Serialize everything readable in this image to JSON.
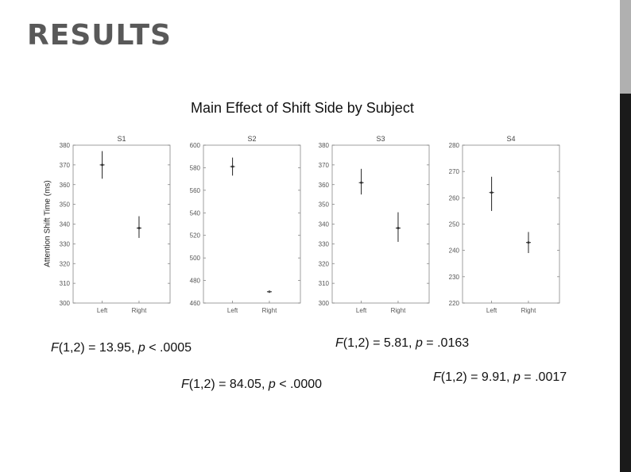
{
  "slide": {
    "title": "RESULTS"
  },
  "figure": {
    "title": "Main Effect of Shift Side by Subject",
    "ylabel": "Attention Shift Time (ms)"
  },
  "chart_data": [
    {
      "type": "scatter",
      "title": "S1",
      "categories": [
        "Left",
        "Right"
      ],
      "ylim": [
        300,
        380
      ],
      "yticks": [
        300,
        310,
        320,
        330,
        340,
        350,
        360,
        370,
        380
      ],
      "points": [
        {
          "x": "Left",
          "mean": 370,
          "low": 363,
          "high": 377
        },
        {
          "x": "Right",
          "mean": 338,
          "low": 333,
          "high": 344
        }
      ],
      "stat": {
        "test": "F(1,2)",
        "F": "13.95",
        "p": "< .0005"
      }
    },
    {
      "type": "scatter",
      "title": "S2",
      "categories": [
        "Left",
        "Right"
      ],
      "ylim": [
        460,
        600
      ],
      "yticks": [
        460,
        480,
        500,
        520,
        540,
        560,
        580,
        600
      ],
      "points": [
        {
          "x": "Left",
          "mean": 581,
          "low": 573,
          "high": 589
        },
        {
          "x": "Right",
          "mean": 470,
          "low": 470,
          "high": 470
        }
      ],
      "stat": {
        "test": "F(1,2)",
        "F": "84.05",
        "p": "< .0000"
      }
    },
    {
      "type": "scatter",
      "title": "S3",
      "categories": [
        "Left",
        "Right"
      ],
      "ylim": [
        300,
        380
      ],
      "yticks": [
        300,
        310,
        320,
        330,
        340,
        350,
        360,
        370,
        380
      ],
      "points": [
        {
          "x": "Left",
          "mean": 361,
          "low": 355,
          "high": 368
        },
        {
          "x": "Right",
          "mean": 338,
          "low": 331,
          "high": 346
        }
      ],
      "stat": {
        "test": "F(1,2)",
        "F": "5.81",
        "p": "= .0163"
      }
    },
    {
      "type": "scatter",
      "title": "S4",
      "categories": [
        "Left",
        "Right"
      ],
      "ylim": [
        220,
        280
      ],
      "yticks": [
        220,
        230,
        240,
        250,
        260,
        270,
        280
      ],
      "points": [
        {
          "x": "Left",
          "mean": 262,
          "low": 255,
          "high": 268
        },
        {
          "x": "Right",
          "mean": 243,
          "low": 239,
          "high": 247
        }
      ],
      "stat": {
        "test": "F(1,2)",
        "F": "9.91",
        "p": "= .0017"
      }
    }
  ],
  "stats_text": [
    {
      "prefix": "F",
      "rest": "(1,2) = 13.95, ",
      "p": "p",
      "tail": " < .0005"
    },
    {
      "prefix": "F",
      "rest": "(1,2) = 84.05, ",
      "p": "p",
      "tail": " < .0000"
    },
    {
      "prefix": "F",
      "rest": "(1,2) = 5.81, ",
      "p": "p",
      "tail": " = .0163"
    },
    {
      "prefix": "F",
      "rest": "(1,2) = 9.91, ",
      "p": "p",
      "tail": " = .0017"
    }
  ]
}
